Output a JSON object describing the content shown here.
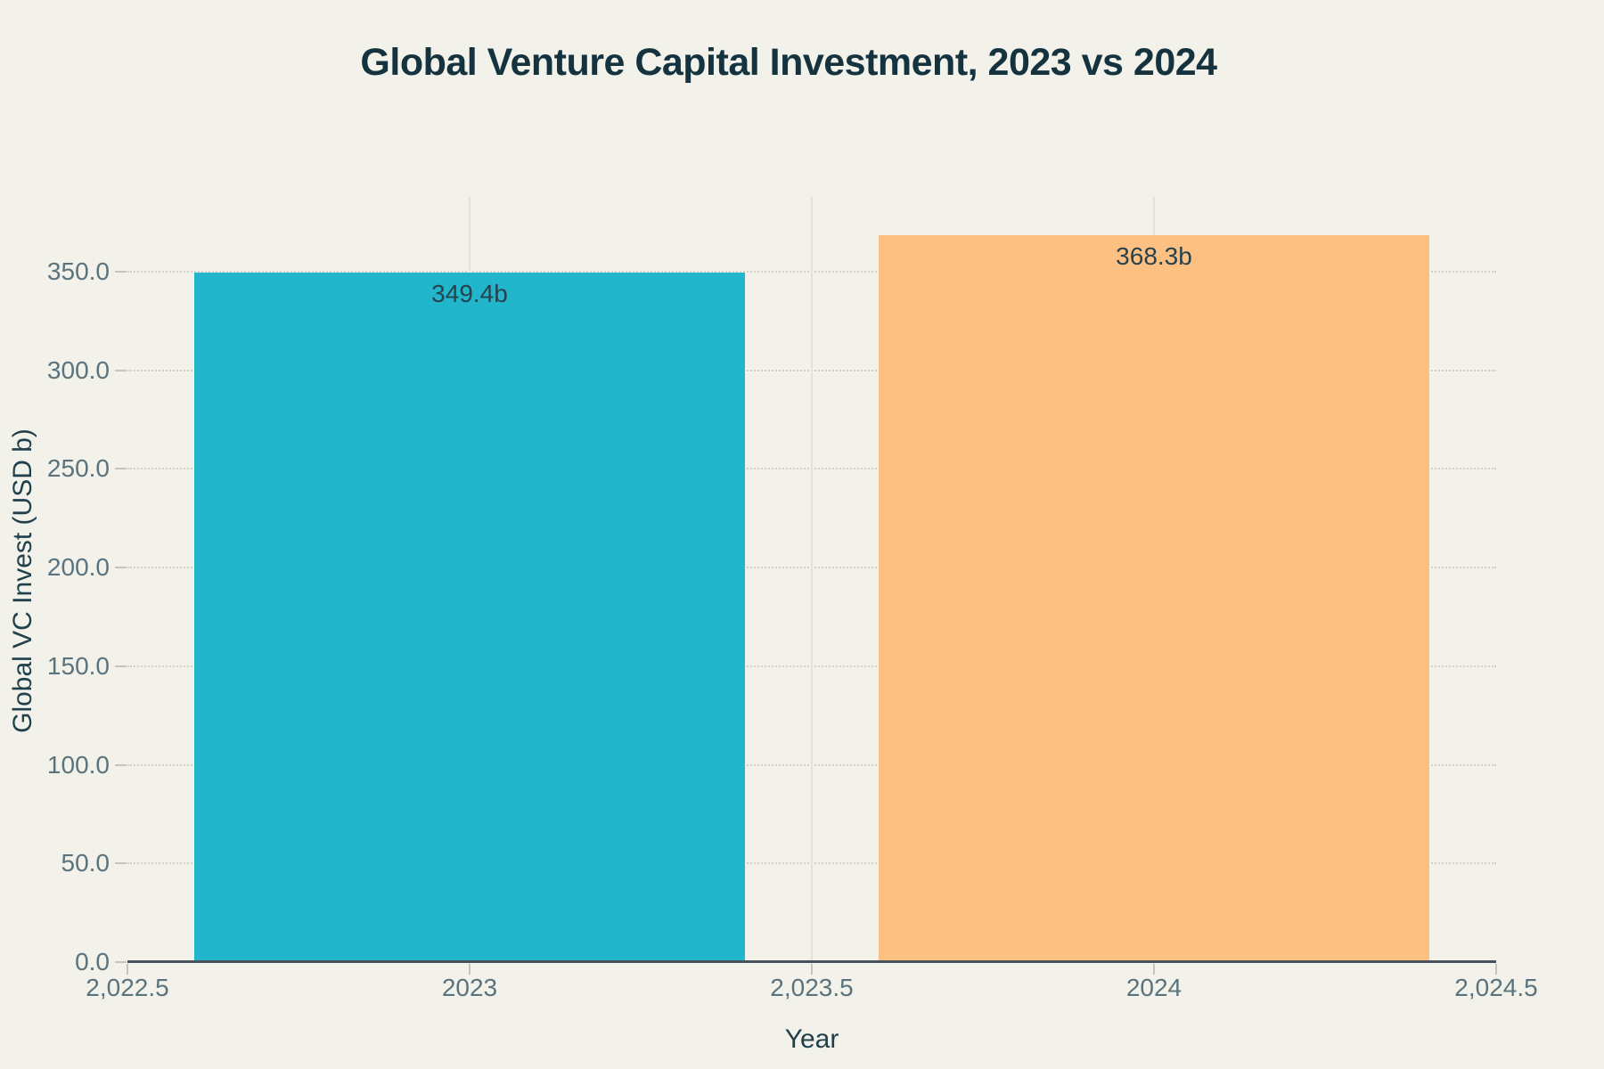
{
  "chart_data": {
    "type": "bar",
    "title": "Global Venture Capital Investment, 2023 vs 2024",
    "xlabel": "Year",
    "ylabel": "Global VC Invest (USD b)",
    "categories": [
      "2023",
      "2024"
    ],
    "x": [
      2023,
      2024
    ],
    "values": [
      349.4,
      368.3
    ],
    "bar_labels": [
      "349.4b",
      "368.3b"
    ],
    "bar_colors": [
      "#21b6cb",
      "#fdc083"
    ],
    "xlim": [
      2022.5,
      2024.5
    ],
    "ylim": [
      0,
      387.9
    ],
    "bar_width": 0.805,
    "grid": true,
    "legend": "none",
    "x_ticks": [
      {
        "value": 2022.5,
        "label": "2,022.5",
        "grid": false
      },
      {
        "value": 2023,
        "label": "2023",
        "grid": true
      },
      {
        "value": 2023.5,
        "label": "2,023.5",
        "grid": true
      },
      {
        "value": 2024,
        "label": "2024",
        "grid": true
      },
      {
        "value": 2024.5,
        "label": "2,024.5",
        "grid": false
      }
    ],
    "y_ticks": [
      {
        "value": 0,
        "label": "0.0"
      },
      {
        "value": 50,
        "label": "50.0"
      },
      {
        "value": 100,
        "label": "100.0"
      },
      {
        "value": 150,
        "label": "150.0"
      },
      {
        "value": 200,
        "label": "200.0"
      },
      {
        "value": 250,
        "label": "250.0"
      },
      {
        "value": 300,
        "label": "300.0"
      },
      {
        "value": 350,
        "label": "350.0"
      }
    ],
    "colors": {
      "background": "#f2f1ea",
      "title": "#15333f",
      "axis_title": "#20404c",
      "tick_label": "#5b737d",
      "grid_v": "#e2e2da",
      "grid_h_dots": "#d0d0c6",
      "axis_line": "#47525a",
      "tick_mark": "#c5c5bb",
      "bar_label": "#28424d"
    }
  }
}
